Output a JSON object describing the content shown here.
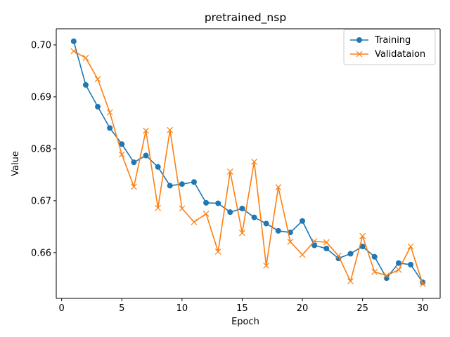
{
  "chart_data": {
    "type": "line",
    "title": "pretrained_nsp",
    "xlabel": "Epoch",
    "ylabel": "Value",
    "xlim": [
      -0.45,
      31.45
    ],
    "ylim": [
      0.6512,
      0.7031
    ],
    "xticks": [
      0,
      5,
      10,
      15,
      20,
      25,
      30
    ],
    "yticks": [
      0.66,
      0.67,
      0.68,
      0.69,
      0.7
    ],
    "xtick_labels": [
      "0",
      "5",
      "10",
      "15",
      "20",
      "25",
      "30"
    ],
    "ytick_labels": [
      "0.66",
      "0.67",
      "0.68",
      "0.69",
      "0.70"
    ],
    "grid": false,
    "legend_position": "top-right",
    "x": [
      1,
      2,
      3,
      4,
      5,
      6,
      7,
      8,
      9,
      10,
      11,
      12,
      13,
      14,
      15,
      16,
      17,
      18,
      19,
      20,
      21,
      22,
      23,
      24,
      25,
      26,
      27,
      28,
      29,
      30
    ],
    "series": [
      {
        "name": "Training",
        "color": "#1f77b4",
        "marker": "circle",
        "values": [
          0.7007,
          0.6923,
          0.6881,
          0.684,
          0.6809,
          0.6774,
          0.6787,
          0.6765,
          0.6729,
          0.6732,
          0.6736,
          0.6696,
          0.6695,
          0.6678,
          0.6685,
          0.6668,
          0.6656,
          0.6642,
          0.6639,
          0.6661,
          0.6614,
          0.6608,
          0.6589,
          0.6598,
          0.6612,
          0.6592,
          0.6551,
          0.658,
          0.6577,
          0.6543
        ]
      },
      {
        "name": "Validataion",
        "color": "#ff7f0e",
        "marker": "x",
        "values": [
          0.6988,
          0.6975,
          0.6934,
          0.687,
          0.6789,
          0.6727,
          0.6835,
          0.6686,
          0.6836,
          0.6685,
          0.6659,
          0.6675,
          0.6602,
          0.6756,
          0.6638,
          0.6775,
          0.6575,
          0.6726,
          0.6621,
          0.6596,
          0.6622,
          0.662,
          0.6594,
          0.6545,
          0.6632,
          0.6563,
          0.6556,
          0.6567,
          0.6612,
          0.654
        ]
      }
    ]
  }
}
